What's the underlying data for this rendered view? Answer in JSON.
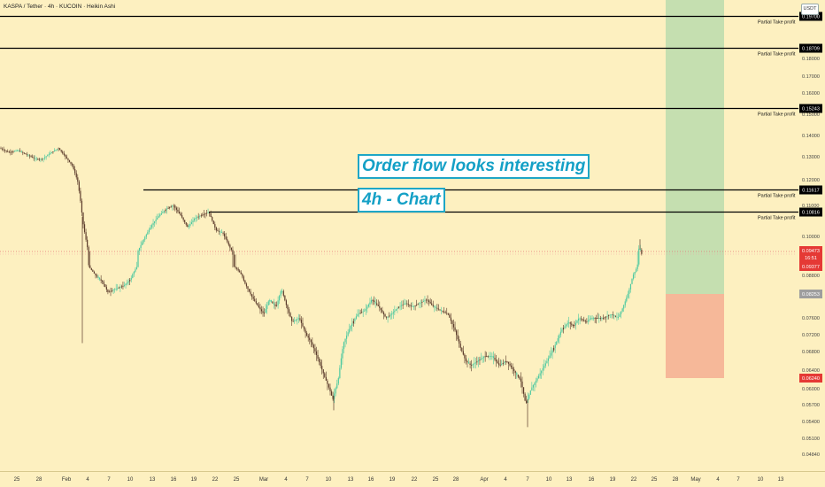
{
  "header": {
    "symbol": "KASPA / Tether · 4h · KUCOIN · Heikin Ashi",
    "currency": "USDT"
  },
  "annotations": {
    "text1": "Order flow looks interesting",
    "text2": "4h - Chart"
  },
  "colors": {
    "up": "#26a69a",
    "down": "#ef5350",
    "up_candle": "#4cc9a0",
    "down_candle": "#5a3a2a",
    "background": "#fdf0c0",
    "profit_zone": "#c5dfb0",
    "loss_zone": "#f6b899"
  },
  "chart_data": {
    "type": "candlestick",
    "title": "KASPA / Tether · 4h · KUCOIN · Heikin Ashi",
    "ylim": [
      0.0475,
      0.205
    ],
    "y_ticks": [
      {
        "value": 0.18,
        "label": "0.18000"
      },
      {
        "value": 0.17,
        "label": "0.17000"
      },
      {
        "value": 0.16,
        "label": "0.16000"
      },
      {
        "value": 0.15,
        "label": "0.15000"
      },
      {
        "value": 0.14,
        "label": "0.14000"
      },
      {
        "value": 0.13,
        "label": "0.13000"
      },
      {
        "value": 0.12,
        "label": "0.12000"
      },
      {
        "value": 0.11,
        "label": "0.11000"
      },
      {
        "value": 0.1,
        "label": "0.10000"
      },
      {
        "value": 0.088,
        "label": "0.08800"
      },
      {
        "value": 0.076,
        "label": "0.07600"
      },
      {
        "value": 0.072,
        "label": "0.07200"
      },
      {
        "value": 0.068,
        "label": "0.06800"
      },
      {
        "value": 0.064,
        "label": "0.06400"
      },
      {
        "value": 0.06,
        "label": "0.06000"
      },
      {
        "value": 0.057,
        "label": "0.05700"
      },
      {
        "value": 0.054,
        "label": "0.05400"
      },
      {
        "value": 0.051,
        "label": "0.05100"
      },
      {
        "value": 0.0484,
        "label": "0.04840"
      }
    ],
    "x_ticks": [
      {
        "x": 19,
        "label": "25"
      },
      {
        "x": 44,
        "label": "28"
      },
      {
        "x": 75,
        "label": "Feb"
      },
      {
        "x": 99,
        "label": "4"
      },
      {
        "x": 123,
        "label": "7"
      },
      {
        "x": 147,
        "label": "10"
      },
      {
        "x": 172,
        "label": "13"
      },
      {
        "x": 196,
        "label": "16"
      },
      {
        "x": 219,
        "label": "19"
      },
      {
        "x": 243,
        "label": "22"
      },
      {
        "x": 267,
        "label": "25"
      },
      {
        "x": 298,
        "label": "Mar"
      },
      {
        "x": 323,
        "label": "4"
      },
      {
        "x": 347,
        "label": "7"
      },
      {
        "x": 371,
        "label": "10"
      },
      {
        "x": 396,
        "label": "13"
      },
      {
        "x": 419,
        "label": "16"
      },
      {
        "x": 443,
        "label": "19"
      },
      {
        "x": 468,
        "label": "22"
      },
      {
        "x": 492,
        "label": "25"
      },
      {
        "x": 515,
        "label": "28"
      },
      {
        "x": 547,
        "label": "Apr"
      },
      {
        "x": 571,
        "label": "4"
      },
      {
        "x": 596,
        "label": "7"
      },
      {
        "x": 620,
        "label": "10"
      },
      {
        "x": 643,
        "label": "13"
      },
      {
        "x": 668,
        "label": "16"
      },
      {
        "x": 692,
        "label": "19"
      },
      {
        "x": 716,
        "label": "22"
      },
      {
        "x": 739,
        "label": "25"
      },
      {
        "x": 763,
        "label": "28"
      },
      {
        "x": 786,
        "label": "May"
      },
      {
        "x": 811,
        "label": "4"
      },
      {
        "x": 834,
        "label": "7"
      },
      {
        "x": 859,
        "label": "10"
      },
      {
        "x": 882,
        "label": "13"
      }
    ],
    "price_path": [
      [
        0,
        0.134
      ],
      [
        10,
        0.132
      ],
      [
        20,
        0.133
      ],
      [
        30,
        0.131
      ],
      [
        40,
        0.129
      ],
      [
        48,
        0.129
      ],
      [
        58,
        0.132
      ],
      [
        66,
        0.134
      ],
      [
        74,
        0.13
      ],
      [
        82,
        0.126
      ],
      [
        88,
        0.119
      ],
      [
        94,
        0.104
      ],
      [
        100,
        0.094
      ],
      [
        108,
        0.088
      ],
      [
        116,
        0.086
      ],
      [
        122,
        0.083
      ],
      [
        130,
        0.084
      ],
      [
        140,
        0.085
      ],
      [
        148,
        0.087
      ],
      [
        156,
        0.095
      ],
      [
        164,
        0.1
      ],
      [
        172,
        0.104
      ],
      [
        180,
        0.107
      ],
      [
        188,
        0.109
      ],
      [
        196,
        0.11
      ],
      [
        204,
        0.107
      ],
      [
        212,
        0.103
      ],
      [
        220,
        0.106
      ],
      [
        228,
        0.107
      ],
      [
        236,
        0.108
      ],
      [
        244,
        0.102
      ],
      [
        252,
        0.101
      ],
      [
        260,
        0.096
      ],
      [
        268,
        0.092
      ],
      [
        276,
        0.086
      ],
      [
        284,
        0.082
      ],
      [
        292,
        0.079
      ],
      [
        298,
        0.077
      ],
      [
        304,
        0.081
      ],
      [
        312,
        0.079
      ],
      [
        318,
        0.084
      ],
      [
        324,
        0.079
      ],
      [
        330,
        0.075
      ],
      [
        338,
        0.076
      ],
      [
        346,
        0.072
      ],
      [
        352,
        0.07
      ],
      [
        358,
        0.067
      ],
      [
        364,
        0.064
      ],
      [
        370,
        0.061
      ],
      [
        376,
        0.058
      ],
      [
        382,
        0.062
      ],
      [
        388,
        0.07
      ],
      [
        396,
        0.074
      ],
      [
        404,
        0.077
      ],
      [
        412,
        0.078
      ],
      [
        420,
        0.081
      ],
      [
        428,
        0.079
      ],
      [
        436,
        0.076
      ],
      [
        442,
        0.077
      ],
      [
        450,
        0.079
      ],
      [
        458,
        0.08
      ],
      [
        466,
        0.079
      ],
      [
        474,
        0.08
      ],
      [
        482,
        0.081
      ],
      [
        490,
        0.079
      ],
      [
        498,
        0.078
      ],
      [
        506,
        0.077
      ],
      [
        514,
        0.073
      ],
      [
        520,
        0.069
      ],
      [
        526,
        0.066
      ],
      [
        532,
        0.065
      ],
      [
        540,
        0.066
      ],
      [
        548,
        0.067
      ],
      [
        556,
        0.067
      ],
      [
        564,
        0.065
      ],
      [
        572,
        0.066
      ],
      [
        580,
        0.064
      ],
      [
        588,
        0.062
      ],
      [
        594,
        0.057
      ],
      [
        600,
        0.06
      ],
      [
        606,
        0.062
      ],
      [
        612,
        0.064
      ],
      [
        618,
        0.066
      ],
      [
        626,
        0.069
      ],
      [
        634,
        0.073
      ],
      [
        642,
        0.075
      ],
      [
        648,
        0.074
      ],
      [
        654,
        0.076
      ],
      [
        662,
        0.075
      ],
      [
        668,
        0.076
      ],
      [
        674,
        0.076
      ],
      [
        682,
        0.076
      ],
      [
        690,
        0.077
      ],
      [
        698,
        0.076
      ],
      [
        704,
        0.079
      ],
      [
        710,
        0.083
      ],
      [
        716,
        0.089
      ],
      [
        722,
        0.096
      ],
      [
        726,
        0.094
      ]
    ],
    "wick_extremes": [
      [
        93,
        0.07
      ],
      [
        377,
        0.056
      ],
      [
        596,
        0.053
      ],
      [
        723,
        0.099
      ]
    ],
    "horizontal_lines": [
      {
        "value": 0.197,
        "x_start": 0,
        "label": "Partial Take profit",
        "price_label": "0.19700"
      },
      {
        "value": 0.18709,
        "x_start": 0,
        "label": "Partial Take profit",
        "price_label": "0.18709"
      },
      {
        "value": 0.15243,
        "x_start": 0,
        "label": "Partial Take profit",
        "price_label": "0.15243"
      },
      {
        "value": 0.11617,
        "x_start": 162,
        "label": "Partial Take profit",
        "price_label": "0.11617"
      },
      {
        "value": 0.10816,
        "x_start": 236,
        "label": "Partial Take profit",
        "price_label": "0.10816"
      }
    ],
    "position": {
      "entry": 0.08253,
      "stop": 0.0624,
      "target": 0.205,
      "x_start": 752,
      "x_end": 818,
      "entry_label": "0.08253",
      "stop_label": "0.06240"
    },
    "current_price": {
      "value": 0.09473,
      "label": "0.09473",
      "countdown": "16:51",
      "lower_value": 0.09377,
      "lower_label": "0.09377"
    }
  }
}
